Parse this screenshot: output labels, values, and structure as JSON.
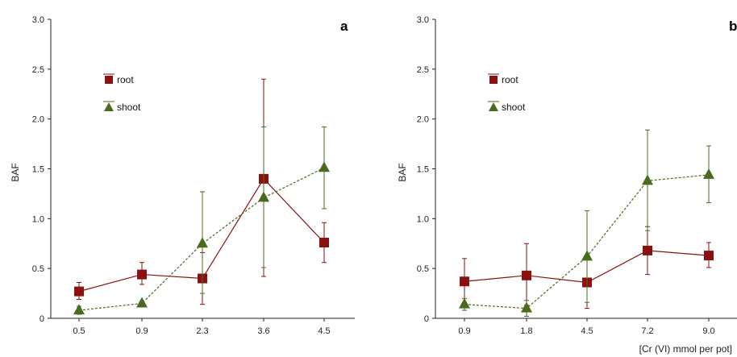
{
  "chart_data": [
    {
      "type": "line",
      "panel_label": "a",
      "xlabel": "",
      "ylabel": "BAF",
      "ylim": [
        0,
        3
      ],
      "yticks": [
        "0",
        "0.5",
        "1.0",
        "1.5",
        "2.0",
        "2.5",
        "3.0"
      ],
      "categories": [
        "0.5",
        "0.9",
        "2.3",
        "3.6",
        "4.5"
      ],
      "legend_position": "top-left",
      "series": [
        {
          "name": "root",
          "color": "#8b1010",
          "marker": "square",
          "line": "solid",
          "values": [
            0.27,
            0.44,
            0.4,
            1.4,
            0.76
          ],
          "err_low": [
            0.19,
            0.34,
            0.14,
            0.42,
            0.56
          ],
          "err_high": [
            0.36,
            0.56,
            0.66,
            2.4,
            0.96
          ]
        },
        {
          "name": "shoot",
          "color": "#4a6b1e",
          "marker": "triangle",
          "line": "dashed",
          "values": [
            0.08,
            0.15,
            0.75,
            1.21,
            1.51
          ],
          "err_low": [
            0.04,
            0.13,
            0.25,
            0.51,
            1.1
          ],
          "err_high": [
            0.12,
            0.17,
            1.27,
            1.92,
            1.92
          ]
        }
      ]
    },
    {
      "type": "line",
      "panel_label": "b",
      "xlabel": "[Cr (VI) mmol per pot]",
      "ylabel": "BAF",
      "ylim": [
        0,
        3
      ],
      "yticks": [
        "0",
        "0.5",
        "1.0",
        "1.5",
        "2.0",
        "2.5",
        "3.0"
      ],
      "categories": [
        "0.9",
        "1.8",
        "4.5",
        "7.2",
        "9.0"
      ],
      "legend_position": "top-left",
      "series": [
        {
          "name": "root",
          "color": "#8b1010",
          "marker": "square",
          "line": "solid",
          "values": [
            0.37,
            0.43,
            0.36,
            0.68,
            0.63
          ],
          "err_low": [
            0.15,
            0.13,
            0.1,
            0.44,
            0.51
          ],
          "err_high": [
            0.6,
            0.75,
            0.59,
            0.92,
            0.76
          ]
        },
        {
          "name": "shoot",
          "color": "#4a6b1e",
          "marker": "triangle",
          "line": "dashed",
          "values": [
            0.14,
            0.1,
            0.62,
            1.38,
            1.44
          ],
          "err_low": [
            0.08,
            0.02,
            0.16,
            0.88,
            1.16
          ],
          "err_high": [
            0.2,
            0.18,
            1.08,
            1.89,
            1.73
          ]
        }
      ]
    }
  ]
}
